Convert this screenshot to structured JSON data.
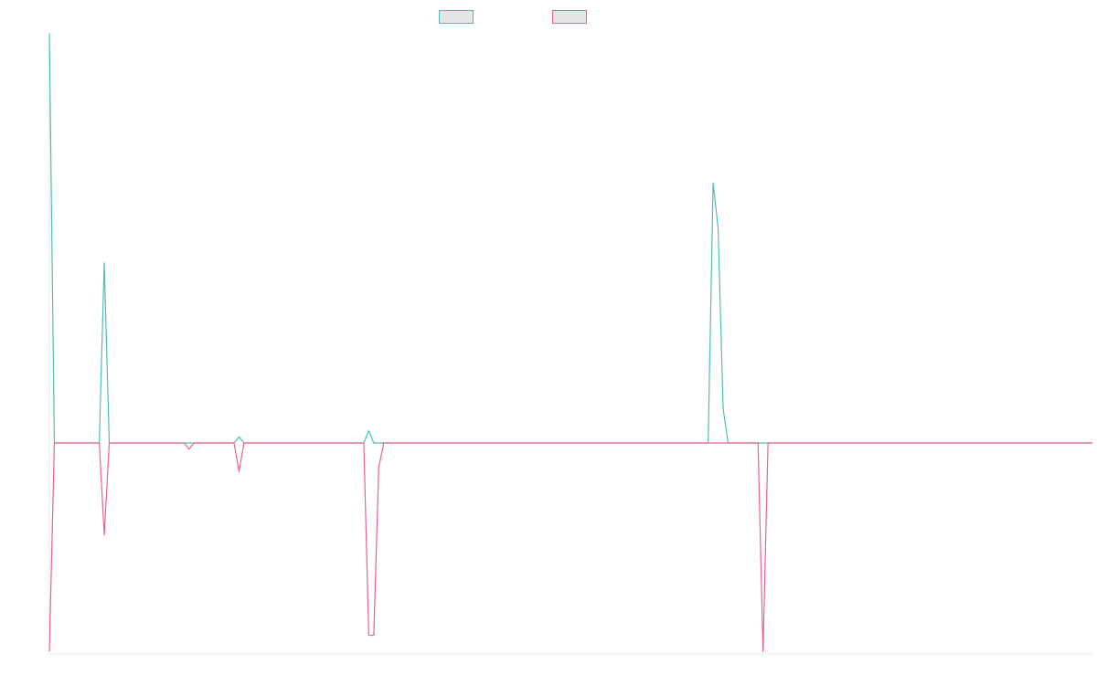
{
  "chart_data": {
    "type": "line",
    "title": "",
    "xlabel": "",
    "ylabel": "",
    "grid": false,
    "legend_position": "top-center",
    "ylim": [
      -1.0,
      2.0
    ],
    "series": [
      {
        "name": "",
        "color": "#4ebdb5",
        "values": [
          2.0,
          0.0,
          0.0,
          0.0,
          0.0,
          0.0,
          0.0,
          0.0,
          0.0,
          0.0,
          0.0,
          0.88,
          0.0,
          0.0,
          0.0,
          0.0,
          0.0,
          0.0,
          0.0,
          0.0,
          0.0,
          0.0,
          0.0,
          0.0,
          0.0,
          0.0,
          0.0,
          0.0,
          0.0,
          0.0,
          0.0,
          0.0,
          0.0,
          0.0,
          0.0,
          0.0,
          0.0,
          0.0,
          0.03,
          0.0,
          0.0,
          0.0,
          0.0,
          0.0,
          0.0,
          0.0,
          0.0,
          0.0,
          0.0,
          0.0,
          0.0,
          0.0,
          0.0,
          0.0,
          0.0,
          0.0,
          0.0,
          0.0,
          0.0,
          0.0,
          0.0,
          0.0,
          0.0,
          0.0,
          0.06,
          0.0,
          0.0,
          0.0,
          0.0,
          0.0,
          0.0,
          0.0,
          0.0,
          0.0,
          0.0,
          0.0,
          0.0,
          0.0,
          0.0,
          0.0,
          0.0,
          0.0,
          0.0,
          0.0,
          0.0,
          0.0,
          0.0,
          0.0,
          0.0,
          0.0,
          0.0,
          0.0,
          0.0,
          0.0,
          0.0,
          0.0,
          0.0,
          0.0,
          0.0,
          0.0,
          0.0,
          0.0,
          0.0,
          0.0,
          0.0,
          0.0,
          0.0,
          0.0,
          0.0,
          0.0,
          0.0,
          0.0,
          0.0,
          0.0,
          0.0,
          0.0,
          0.0,
          0.0,
          0.0,
          0.0,
          0.0,
          0.0,
          0.0,
          0.0,
          0.0,
          0.0,
          0.0,
          0.0,
          0.0,
          0.0,
          0.0,
          0.0,
          0.0,
          1.27,
          1.05,
          0.17,
          0.0,
          0.0,
          0.0,
          0.0,
          0.0,
          0.0,
          0.0,
          0.0,
          0.0,
          0.0,
          0.0,
          0.0,
          0.0,
          0.0,
          0.0,
          0.0,
          0.0,
          0.0,
          0.0,
          0.0,
          0.0,
          0.0,
          0.0,
          0.0,
          0.0,
          0.0,
          0.0,
          0.0,
          0.0,
          0.0,
          0.0,
          0.0,
          0.0,
          0.0,
          0.0,
          0.0,
          0.0,
          0.0,
          0.0,
          0.0,
          0.0,
          0.0,
          0.0,
          0.0,
          0.0,
          0.0,
          0.0,
          0.0,
          0.0,
          0.0,
          0.0,
          0.0,
          0.0,
          0.0,
          0.0,
          0.0,
          0.0,
          0.0,
          0.0,
          0.0,
          0.0,
          0.0,
          0.0,
          0.0,
          0.0,
          0.0,
          0.0,
          0.0,
          0.0,
          0.0,
          0.0,
          0.0,
          0.0,
          0.0
        ]
      },
      {
        "name": "",
        "color": "#f06289",
        "values": [
          -1.02,
          0.0,
          0.0,
          0.0,
          0.0,
          0.0,
          0.0,
          0.0,
          0.0,
          0.0,
          0.0,
          -0.45,
          0.0,
          0.0,
          0.0,
          0.0,
          0.0,
          0.0,
          0.0,
          0.0,
          0.0,
          0.0,
          0.0,
          0.0,
          0.0,
          0.0,
          0.0,
          0.0,
          -0.03,
          0.0,
          0.0,
          0.0,
          0.0,
          0.0,
          0.0,
          0.0,
          0.0,
          0.0,
          -0.14,
          0.0,
          0.0,
          0.0,
          0.0,
          0.0,
          0.0,
          0.0,
          0.0,
          0.0,
          0.0,
          0.0,
          0.0,
          0.0,
          0.0,
          0.0,
          0.0,
          0.0,
          0.0,
          0.0,
          0.0,
          0.0,
          0.0,
          0.0,
          0.0,
          0.0,
          -0.94,
          -0.94,
          -0.12,
          0.0,
          0.0,
          0.0,
          0.0,
          0.0,
          0.0,
          0.0,
          0.0,
          0.0,
          0.0,
          0.0,
          0.0,
          0.0,
          0.0,
          0.0,
          0.0,
          0.0,
          0.0,
          0.0,
          0.0,
          0.0,
          0.0,
          0.0,
          0.0,
          0.0,
          0.0,
          0.0,
          0.0,
          0.0,
          0.0,
          0.0,
          0.0,
          0.0,
          0.0,
          0.0,
          0.0,
          0.0,
          0.0,
          0.0,
          0.0,
          0.0,
          0.0,
          0.0,
          0.0,
          0.0,
          0.0,
          0.0,
          0.0,
          0.0,
          0.0,
          0.0,
          0.0,
          0.0,
          0.0,
          0.0,
          0.0,
          0.0,
          0.0,
          0.0,
          0.0,
          0.0,
          0.0,
          0.0,
          0.0,
          0.0,
          0.0,
          0.0,
          0.0,
          0.0,
          0.0,
          0.0,
          0.0,
          0.0,
          0.0,
          0.0,
          0.0,
          -1.02,
          0.0,
          0.0,
          0.0,
          0.0,
          0.0,
          0.0,
          0.0,
          0.0,
          0.0,
          0.0,
          0.0,
          0.0,
          0.0,
          0.0,
          0.0,
          0.0,
          0.0,
          0.0,
          0.0,
          0.0,
          0.0,
          0.0,
          0.0,
          0.0,
          0.0,
          0.0,
          0.0,
          0.0,
          0.0,
          0.0,
          0.0,
          0.0,
          0.0,
          0.0,
          0.0,
          0.0,
          0.0,
          0.0,
          0.0,
          0.0,
          0.0,
          0.0,
          0.0,
          0.0,
          0.0,
          0.0,
          0.0,
          0.0,
          0.0,
          0.0,
          0.0,
          0.0,
          0.0,
          0.0,
          0.0,
          0.0,
          0.0,
          0.0,
          0.0,
          0.0,
          0.0,
          0.0,
          0.0,
          0.0,
          0.0,
          0.0
        ]
      }
    ]
  }
}
